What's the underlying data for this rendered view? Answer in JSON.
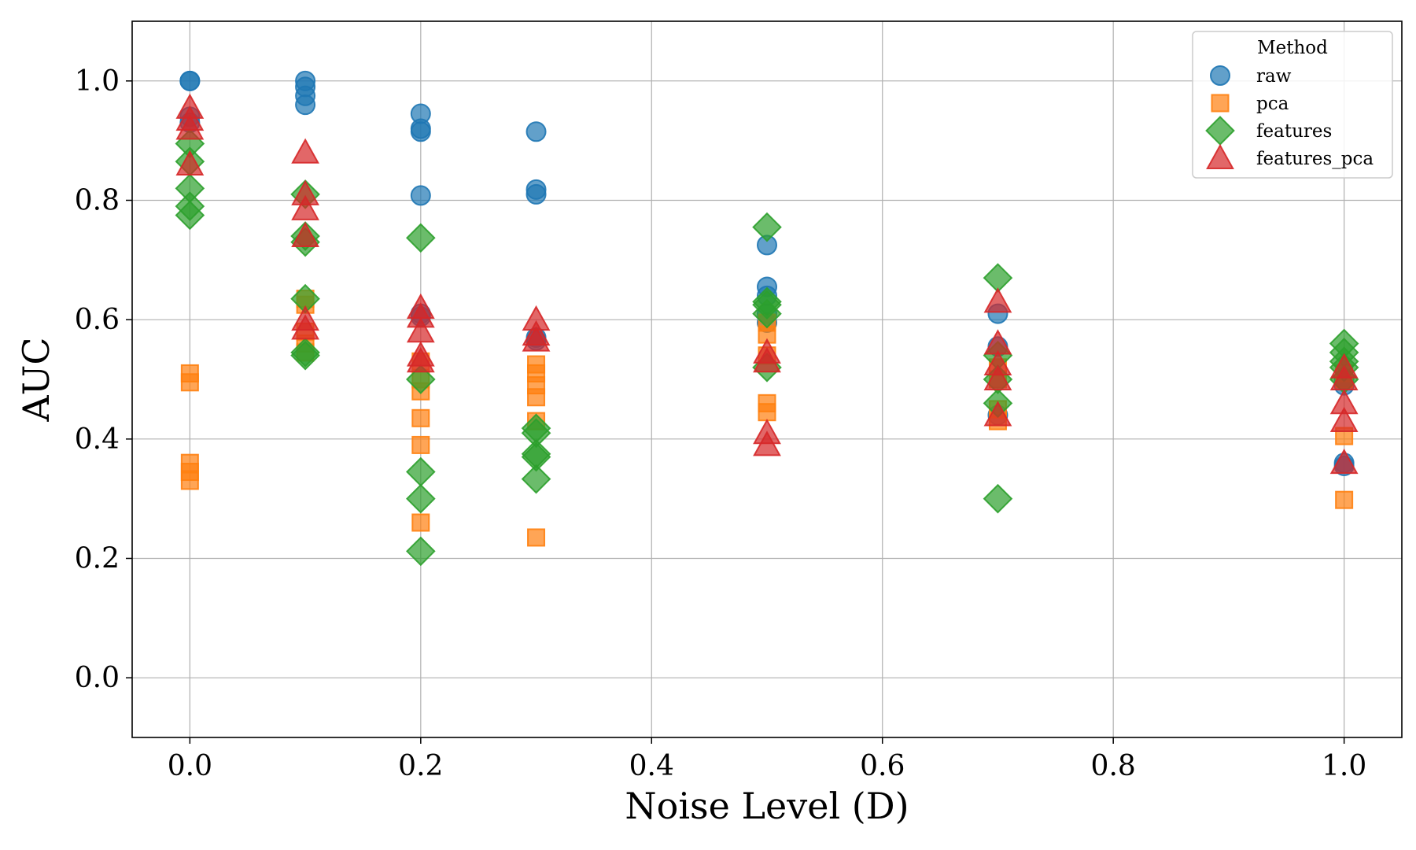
{
  "chart_data": {
    "type": "scatter",
    "title": "",
    "xlabel": "Noise Level (D)",
    "ylabel": "AUC",
    "xlim": [
      -0.05,
      1.05
    ],
    "ylim": [
      -0.1,
      1.1
    ],
    "xticks": [
      0.0,
      0.2,
      0.4,
      0.6,
      0.8,
      1.0
    ],
    "xtick_labels": [
      "0.0",
      "0.2",
      "0.4",
      "0.6",
      "0.8",
      "1.0"
    ],
    "yticks": [
      0.0,
      0.2,
      0.4,
      0.6,
      0.8,
      1.0
    ],
    "ytick_labels": [
      "0.0",
      "0.2",
      "0.4",
      "0.6",
      "0.8",
      "1.0"
    ],
    "grid": true,
    "legend": {
      "title": "Method",
      "placement": "top-right"
    },
    "series": [
      {
        "name": "raw",
        "marker": "circle",
        "color": "#1f77b4",
        "points": [
          [
            0.0,
            1.0
          ],
          [
            0.0,
            1.0
          ],
          [
            0.0,
            0.94
          ],
          [
            0.0,
            0.93
          ],
          [
            0.1,
            1.0
          ],
          [
            0.1,
            0.99
          ],
          [
            0.1,
            0.975
          ],
          [
            0.1,
            0.96
          ],
          [
            0.2,
            0.945
          ],
          [
            0.2,
            0.92
          ],
          [
            0.2,
            0.915
          ],
          [
            0.2,
            0.808
          ],
          [
            0.2,
            0.61
          ],
          [
            0.2,
            0.605
          ],
          [
            0.3,
            0.915
          ],
          [
            0.3,
            0.818
          ],
          [
            0.3,
            0.81
          ],
          [
            0.3,
            0.57
          ],
          [
            0.3,
            0.565
          ],
          [
            0.5,
            0.725
          ],
          [
            0.5,
            0.655
          ],
          [
            0.5,
            0.64
          ],
          [
            0.5,
            0.61
          ],
          [
            0.5,
            0.595
          ],
          [
            0.7,
            0.61
          ],
          [
            0.7,
            0.555
          ],
          [
            0.7,
            0.44
          ],
          [
            1.0,
            0.5
          ],
          [
            1.0,
            0.49
          ],
          [
            1.0,
            0.36
          ],
          [
            1.0,
            0.355
          ]
        ]
      },
      {
        "name": "pca",
        "marker": "square",
        "color": "#ff7f0e",
        "points": [
          [
            0.0,
            0.51
          ],
          [
            0.0,
            0.495
          ],
          [
            0.0,
            0.36
          ],
          [
            0.0,
            0.345
          ],
          [
            0.0,
            0.33
          ],
          [
            0.1,
            0.635
          ],
          [
            0.1,
            0.625
          ],
          [
            0.1,
            0.58
          ],
          [
            0.1,
            0.56
          ],
          [
            0.1,
            0.545
          ],
          [
            0.2,
            0.53
          ],
          [
            0.2,
            0.5
          ],
          [
            0.2,
            0.48
          ],
          [
            0.2,
            0.435
          ],
          [
            0.2,
            0.39
          ],
          [
            0.2,
            0.26
          ],
          [
            0.3,
            0.525
          ],
          [
            0.3,
            0.51
          ],
          [
            0.3,
            0.49
          ],
          [
            0.3,
            0.47
          ],
          [
            0.3,
            0.43
          ],
          [
            0.3,
            0.235
          ],
          [
            0.5,
            0.595
          ],
          [
            0.5,
            0.575
          ],
          [
            0.5,
            0.54
          ],
          [
            0.5,
            0.46
          ],
          [
            0.5,
            0.445
          ],
          [
            0.7,
            0.52
          ],
          [
            0.7,
            0.5
          ],
          [
            0.7,
            0.45
          ],
          [
            0.7,
            0.43
          ],
          [
            1.0,
            0.51
          ],
          [
            1.0,
            0.5
          ],
          [
            1.0,
            0.405
          ],
          [
            1.0,
            0.298
          ]
        ]
      },
      {
        "name": "features",
        "marker": "diamond",
        "color": "#2ca02c",
        "points": [
          [
            0.0,
            0.895
          ],
          [
            0.0,
            0.865
          ],
          [
            0.0,
            0.82
          ],
          [
            0.0,
            0.79
          ],
          [
            0.0,
            0.775
          ],
          [
            0.1,
            0.81
          ],
          [
            0.1,
            0.74
          ],
          [
            0.1,
            0.73
          ],
          [
            0.1,
            0.635
          ],
          [
            0.1,
            0.545
          ],
          [
            0.1,
            0.54
          ],
          [
            0.2,
            0.737
          ],
          [
            0.2,
            0.5
          ],
          [
            0.2,
            0.345
          ],
          [
            0.2,
            0.3
          ],
          [
            0.2,
            0.212
          ],
          [
            0.3,
            0.418
          ],
          [
            0.3,
            0.41
          ],
          [
            0.3,
            0.375
          ],
          [
            0.3,
            0.37
          ],
          [
            0.3,
            0.333
          ],
          [
            0.5,
            0.755
          ],
          [
            0.5,
            0.63
          ],
          [
            0.5,
            0.625
          ],
          [
            0.5,
            0.61
          ],
          [
            0.5,
            0.52
          ],
          [
            0.7,
            0.67
          ],
          [
            0.7,
            0.54
          ],
          [
            0.7,
            0.5
          ],
          [
            0.7,
            0.46
          ],
          [
            0.7,
            0.3
          ],
          [
            1.0,
            0.56
          ],
          [
            1.0,
            0.545
          ],
          [
            1.0,
            0.53
          ],
          [
            1.0,
            0.52
          ],
          [
            1.0,
            0.5
          ]
        ]
      },
      {
        "name": "features_pca",
        "marker": "triangle",
        "color": "#d62728",
        "points": [
          [
            0.0,
            0.955
          ],
          [
            0.0,
            0.935
          ],
          [
            0.0,
            0.92
          ],
          [
            0.0,
            0.86
          ],
          [
            0.1,
            0.88
          ],
          [
            0.1,
            0.81
          ],
          [
            0.1,
            0.785
          ],
          [
            0.1,
            0.74
          ],
          [
            0.1,
            0.6
          ],
          [
            0.1,
            0.585
          ],
          [
            0.2,
            0.62
          ],
          [
            0.2,
            0.605
          ],
          [
            0.2,
            0.58
          ],
          [
            0.2,
            0.54
          ],
          [
            0.2,
            0.53
          ],
          [
            0.3,
            0.6
          ],
          [
            0.3,
            0.575
          ],
          [
            0.3,
            0.565
          ],
          [
            0.5,
            0.545
          ],
          [
            0.5,
            0.53
          ],
          [
            0.5,
            0.41
          ],
          [
            0.5,
            0.39
          ],
          [
            0.7,
            0.63
          ],
          [
            0.7,
            0.56
          ],
          [
            0.7,
            0.525
          ],
          [
            0.7,
            0.5
          ],
          [
            0.7,
            0.44
          ],
          [
            1.0,
            0.52
          ],
          [
            1.0,
            0.5
          ],
          [
            1.0,
            0.46
          ],
          [
            1.0,
            0.43
          ],
          [
            1.0,
            0.36
          ]
        ]
      }
    ]
  }
}
